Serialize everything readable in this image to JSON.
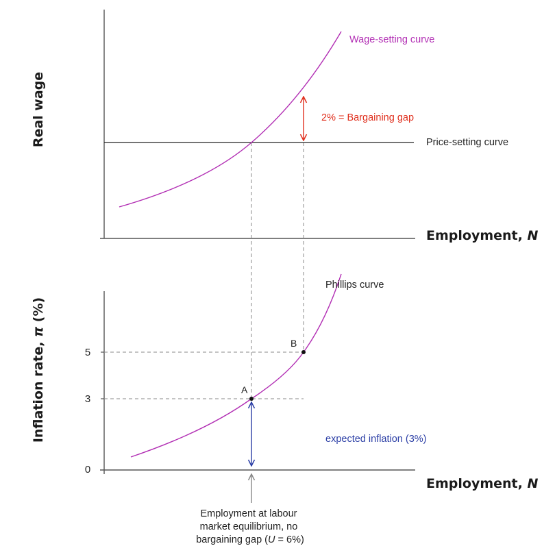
{
  "top_panel": {
    "y_axis_label": "Real wage",
    "x_axis_label_text": "Employment, ",
    "x_axis_label_var": "N",
    "wage_setting_label": "Wage-setting curve",
    "price_setting_label": "Price-setting curve",
    "bargaining_gap_label": "2% = Bargaining gap"
  },
  "bottom_panel": {
    "y_axis_label_text": "Inflation rate, ",
    "y_axis_label_var": "π",
    "y_axis_label_unit": " (%)",
    "x_axis_label_text": "Employment, ",
    "x_axis_label_var": "N",
    "phillips_label": "Phillips curve",
    "y_ticks": [
      "5",
      "3",
      "0"
    ],
    "point_a": "A",
    "point_b": "B",
    "expected_inflation_label": "expected inflation (3%)"
  },
  "note": {
    "line1": "Employment at labour",
    "line2": "market equilibrium, no",
    "line3_prefix": "bargaining gap (",
    "line3_var": "U",
    "line3_suffix": " = 6%)"
  },
  "colors": {
    "curve": "#b22fb4",
    "gap_arrow": "#e0301e",
    "expected_arrow": "#2c3fa6",
    "axis": "#555555",
    "dashed": "#888888"
  }
}
